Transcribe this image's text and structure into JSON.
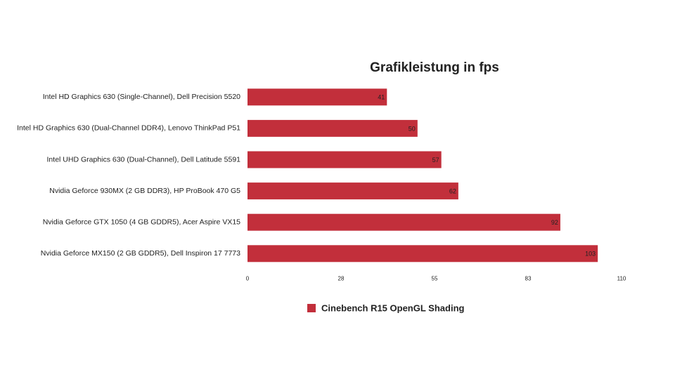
{
  "chart_data": {
    "type": "hbar",
    "title": "Grafikleistung in fps",
    "categories": [
      "Intel HD Graphics 630 (Single-Channel), Dell Precision 5520",
      "Intel HD Graphics 630 (Dual-Channel DDR4), Lenovo ThinkPad P51",
      "Intel UHD Graphics 630 (Dual-Channel), Dell Latitude 5591",
      "Nvidia Geforce 930MX (2 GB DDR3), HP ProBook 470 G5",
      "Nvidia Geforce GTX 1050 (4 GB GDDR5), Acer Aspire VX15",
      "Nvidia Geforce MX150 (2 GB GDDR5), Dell Inspiron 17 7773"
    ],
    "series": [
      {
        "name": "Cinebench R15 OpenGL Shading",
        "color": "#c22f3b",
        "values": [
          41,
          50,
          57,
          62,
          92,
          103
        ]
      }
    ],
    "xlim": [
      0,
      110
    ],
    "xticks": [
      0,
      {
        "value": 27.5,
        "label": "28"
      },
      55,
      {
        "value": 82.5,
        "label": "83"
      },
      110
    ],
    "grid": false,
    "legend": "bottom"
  }
}
